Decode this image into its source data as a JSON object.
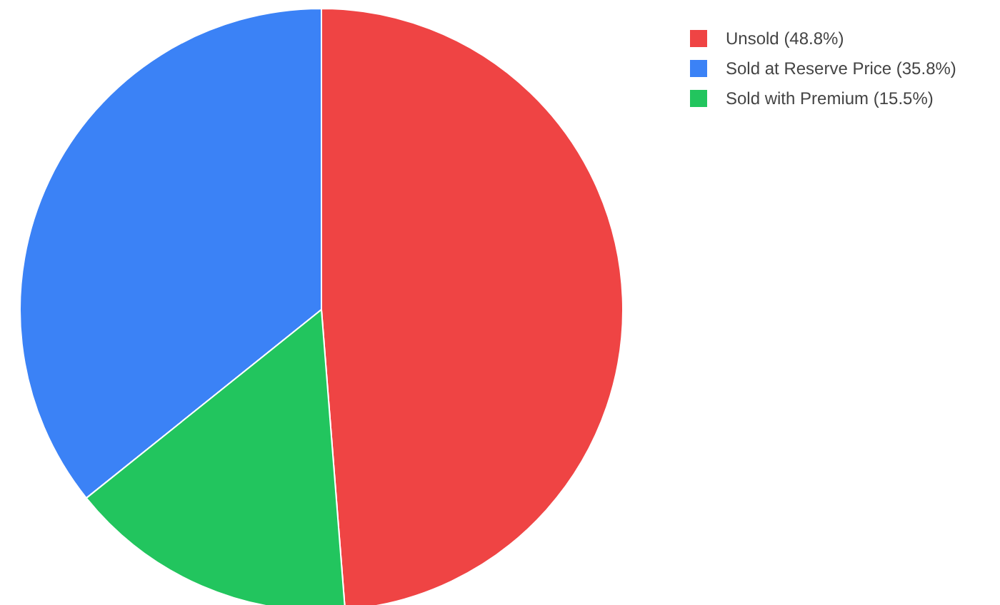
{
  "chart_data": {
    "type": "pie",
    "categories": [
      "Unsold (48.8%)",
      "Sold at Reserve Price (35.8%)",
      "Sold with Premium (15.5%)"
    ],
    "values": [
      48.8,
      35.8,
      15.5
    ],
    "colors": [
      "#ef4444",
      "#3b82f6",
      "#22c55e"
    ],
    "legend": "top right"
  }
}
